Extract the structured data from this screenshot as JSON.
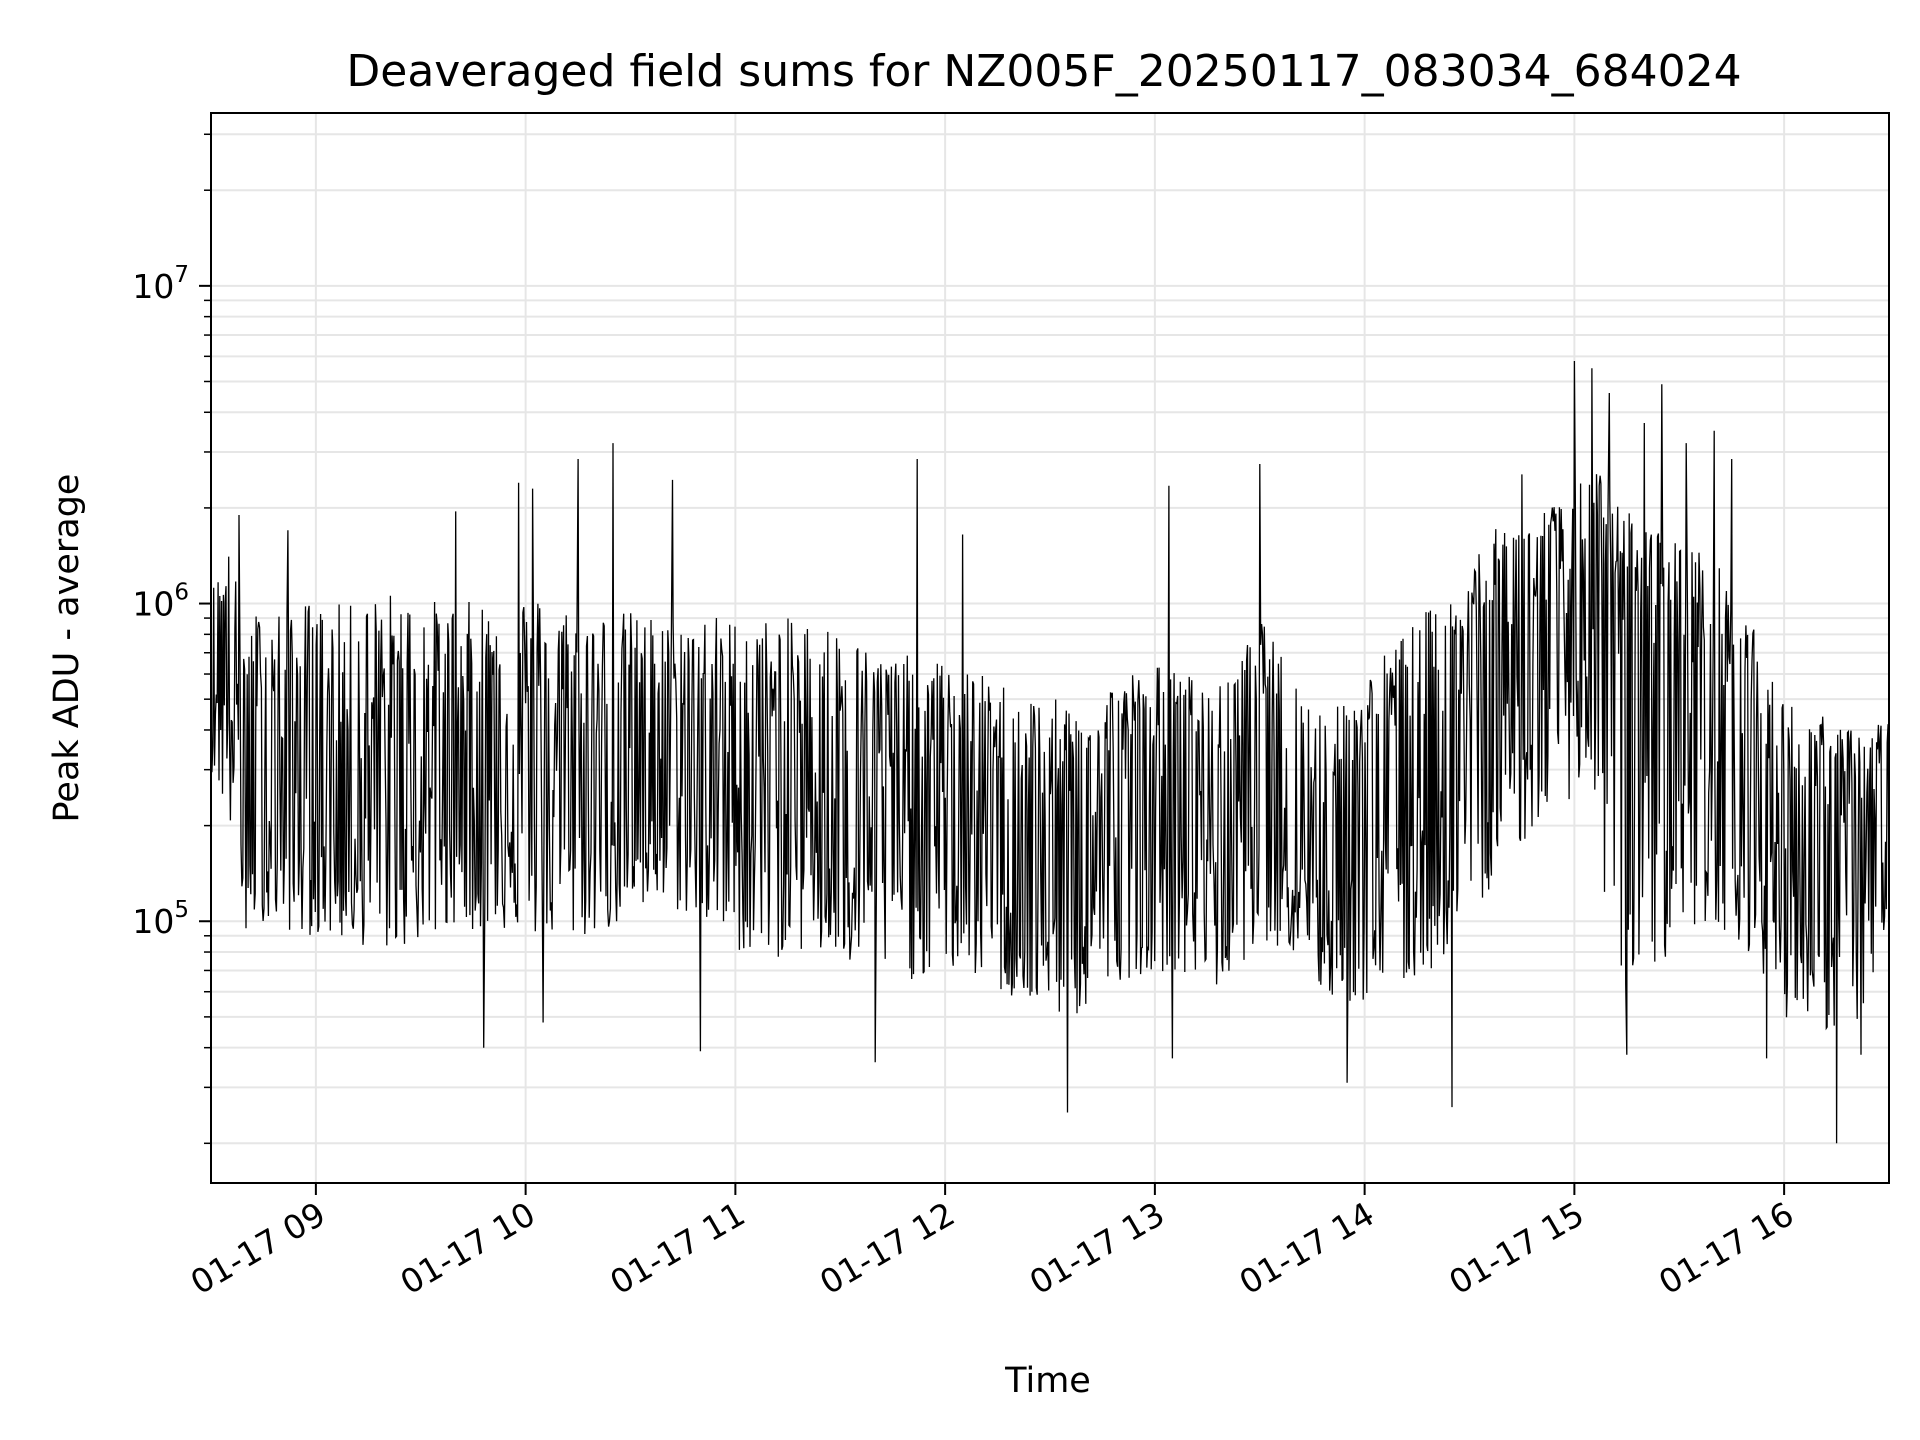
{
  "chart_data": {
    "type": "line",
    "title": "Deaveraged field sums for NZ005F_20250117_083034_684024",
    "xlabel": "Time",
    "ylabel": "Peak ADU - average",
    "yscale": "log",
    "xlim": [
      "2025-01-17T08:30:00",
      "2025-01-17T16:30:00"
    ],
    "ylim": [
      15000,
      35000000
    ],
    "grid": true,
    "line_color": "#000000",
    "grid_color": "#e6e6e6",
    "x_ticks": [
      {
        "value": "2025-01-17T09:00:00",
        "label": "01-17 09"
      },
      {
        "value": "2025-01-17T10:00:00",
        "label": "01-17 10"
      },
      {
        "value": "2025-01-17T11:00:00",
        "label": "01-17 11"
      },
      {
        "value": "2025-01-17T12:00:00",
        "label": "01-17 12"
      },
      {
        "value": "2025-01-17T13:00:00",
        "label": "01-17 13"
      },
      {
        "value": "2025-01-17T14:00:00",
        "label": "01-17 14"
      },
      {
        "value": "2025-01-17T15:00:00",
        "label": "01-17 15"
      },
      {
        "value": "2025-01-17T16:00:00",
        "label": "01-17 16"
      }
    ],
    "y_ticks": [
      {
        "value": 100000,
        "base": "10",
        "exp": "5"
      },
      {
        "value": 1000000,
        "base": "10",
        "exp": "6"
      },
      {
        "value": 10000000,
        "base": "10",
        "exp": "7"
      }
    ],
    "series": [
      {
        "x": [
          "2025-01-17T08:30:00",
          "2025-01-17T08:35:00",
          "2025-01-17T08:40:00",
          "2025-01-17T08:45:00",
          "2025-01-17T08:50:00",
          "2025-01-17T08:55:00",
          "2025-01-17T09:00:00",
          "2025-01-17T09:10:00",
          "2025-01-17T09:20:00",
          "2025-01-17T09:30:00",
          "2025-01-17T09:40:00",
          "2025-01-17T09:50:00",
          "2025-01-17T10:00:00",
          "2025-01-17T10:10:00",
          "2025-01-17T10:20:00",
          "2025-01-17T10:30:00",
          "2025-01-17T10:40:00",
          "2025-01-17T10:50:00",
          "2025-01-17T11:00:00",
          "2025-01-17T11:10:00",
          "2025-01-17T11:20:00",
          "2025-01-17T11:30:00",
          "2025-01-17T11:40:00",
          "2025-01-17T11:50:00",
          "2025-01-17T12:00:00",
          "2025-01-17T12:10:00",
          "2025-01-17T12:20:00",
          "2025-01-17T12:30:00",
          "2025-01-17T12:40:00",
          "2025-01-17T12:50:00",
          "2025-01-17T13:00:00",
          "2025-01-17T13:10:00",
          "2025-01-17T13:20:00",
          "2025-01-17T13:30:00",
          "2025-01-17T13:40:00",
          "2025-01-17T13:50:00",
          "2025-01-17T14:00:00",
          "2025-01-17T14:10:00",
          "2025-01-17T14:20:00",
          "2025-01-17T14:30:00",
          "2025-01-17T14:40:00",
          "2025-01-17T14:50:00",
          "2025-01-17T15:00:00",
          "2025-01-17T15:05:00",
          "2025-01-17T15:10:00",
          "2025-01-17T15:20:00",
          "2025-01-17T15:30:00",
          "2025-01-17T15:40:00",
          "2025-01-17T15:50:00",
          "2025-01-17T16:00:00",
          "2025-01-17T16:10:00",
          "2025-01-17T16:20:00",
          "2025-01-17T16:30:00"
        ],
        "y": [
          800000,
          700000,
          250000,
          300000,
          250000,
          300000,
          260000,
          250000,
          270000,
          280000,
          270000,
          300000,
          320000,
          300000,
          280000,
          300000,
          320000,
          300000,
          280000,
          300000,
          290000,
          280000,
          260000,
          250000,
          240000,
          220000,
          180000,
          150000,
          150000,
          220000,
          240000,
          230000,
          200000,
          350000,
          200000,
          160000,
          200000,
          250000,
          300000,
          450000,
          600000,
          750000,
          900000,
          1000000,
          800000,
          700000,
          600000,
          500000,
          350000,
          200000,
          180000,
          170000,
          250000
        ],
        "band_low": [
          300000,
          200000,
          100000,
          100000,
          95000,
          90000,
          90000,
          85000,
          80000,
          85000,
          90000,
          95000,
          90000,
          85000,
          90000,
          100000,
          110000,
          100000,
          80000,
          75000,
          80000,
          70000,
          70000,
          65000,
          70000,
          65000,
          55000,
          50000,
          50000,
          65000,
          70000,
          65000,
          60000,
          90000,
          75000,
          55000,
          55000,
          60000,
          70000,
          100000,
          150000,
          200000,
          250000,
          300000,
          60000,
          60000,
          90000,
          100000,
          80000,
          50000,
          45000,
          45000,
          80000
        ],
        "band_high": [
          1100000,
          1500000,
          900000,
          1000000,
          1000000,
          1050000,
          1000000,
          1000000,
          1100000,
          1050000,
          1000000,
          1050000,
          1100000,
          1000000,
          950000,
          950000,
          900000,
          950000,
          900000,
          900000,
          900000,
          850000,
          700000,
          700000,
          650000,
          600000,
          550000,
          500000,
          500000,
          600000,
          650000,
          600000,
          550000,
          900000,
          600000,
          450000,
          600000,
          800000,
          1000000,
          1500000,
          1800000,
          2000000,
          2200000,
          3000000,
          2200000,
          1800000,
          1600000,
          1400000,
          900000,
          500000,
          450000,
          400000,
          450000
        ],
        "spikes": [
          {
            "x": "2025-01-17T08:38:00",
            "y": 1900000
          },
          {
            "x": "2025-01-17T08:52:00",
            "y": 1700000
          },
          {
            "x": "2025-01-17T09:40:00",
            "y": 1950000
          },
          {
            "x": "2025-01-17T09:58:00",
            "y": 2400000
          },
          {
            "x": "2025-01-17T10:02:00",
            "y": 2300000
          },
          {
            "x": "2025-01-17T10:15:00",
            "y": 2850000
          },
          {
            "x": "2025-01-17T10:25:00",
            "y": 3200000
          },
          {
            "x": "2025-01-17T10:42:00",
            "y": 2450000
          },
          {
            "x": "2025-01-17T11:52:00",
            "y": 2850000
          },
          {
            "x": "2025-01-17T12:05:00",
            "y": 1650000
          },
          {
            "x": "2025-01-17T13:04:00",
            "y": 2350000
          },
          {
            "x": "2025-01-17T13:30:00",
            "y": 2750000
          },
          {
            "x": "2025-01-17T14:45:00",
            "y": 2550000
          },
          {
            "x": "2025-01-17T15:00:00",
            "y": 5800000
          },
          {
            "x": "2025-01-17T15:05:00",
            "y": 5500000
          },
          {
            "x": "2025-01-17T15:10:00",
            "y": 4600000
          },
          {
            "x": "2025-01-17T15:20:00",
            "y": 3700000
          },
          {
            "x": "2025-01-17T15:25:00",
            "y": 4900000
          },
          {
            "x": "2025-01-17T15:32:00",
            "y": 3200000
          },
          {
            "x": "2025-01-17T15:40:00",
            "y": 3500000
          },
          {
            "x": "2025-01-17T15:45:00",
            "y": 2850000
          },
          {
            "x": "2025-01-17T08:40:00",
            "y": 95000
          },
          {
            "x": "2025-01-17T09:48:00",
            "y": 40000
          },
          {
            "x": "2025-01-17T10:05:00",
            "y": 48000
          },
          {
            "x": "2025-01-17T10:50:00",
            "y": 39000
          },
          {
            "x": "2025-01-17T11:40:00",
            "y": 36000
          },
          {
            "x": "2025-01-17T12:35:00",
            "y": 25000
          },
          {
            "x": "2025-01-17T13:05:00",
            "y": 37000
          },
          {
            "x": "2025-01-17T13:55:00",
            "y": 31000
          },
          {
            "x": "2025-01-17T14:25:00",
            "y": 26000
          },
          {
            "x": "2025-01-17T15:15:00",
            "y": 38000
          },
          {
            "x": "2025-01-17T15:55:00",
            "y": 37000
          },
          {
            "x": "2025-01-17T16:15:00",
            "y": 20000
          },
          {
            "x": "2025-01-17T16:22:00",
            "y": 38000
          }
        ]
      }
    ]
  }
}
